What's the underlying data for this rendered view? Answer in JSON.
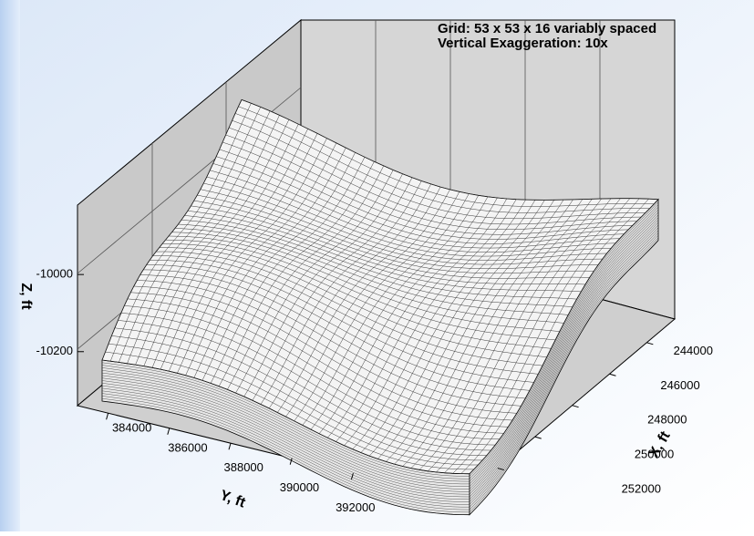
{
  "chart_data": {
    "type": "surface3d",
    "annotations": [
      "Grid: 53 x 53 x 16 variably spaced",
      "Vertical Exaggeration: 10x"
    ],
    "xlabel": "X, ft",
    "ylabel": "Y, ft",
    "zlabel": "Z, ft",
    "xlim": [
      242500,
      254000
    ],
    "xticks": [
      244000,
      246000,
      248000,
      250000,
      252000
    ],
    "ylim": [
      383000,
      395500
    ],
    "yticks": [
      384000,
      386000,
      388000,
      390000,
      392000
    ],
    "zlim": [
      -10340,
      -9820
    ],
    "zticks": [
      -10000,
      -10200
    ]
  }
}
